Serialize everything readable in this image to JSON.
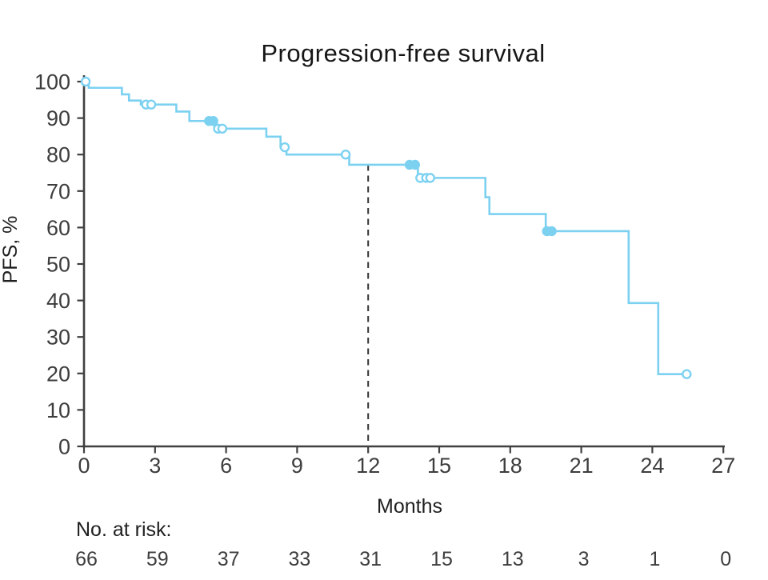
{
  "colors": {
    "curve": "#7cd1f1",
    "axis": "#404040",
    "reference_line": "#333333",
    "title_text": "#161616",
    "label_text": "#1f1f1f",
    "tick_text": "#3d3d3d",
    "background": "#ffffff"
  },
  "chart_data": {
    "type": "line",
    "subtype": "kaplan-meier-step-curve",
    "title": "Progression-free survival",
    "xlabel": "Months",
    "ylabel": "PFS, %",
    "xlim": [
      0,
      27
    ],
    "ylim": [
      0,
      100
    ],
    "x_ticks": [
      0,
      3,
      6,
      9,
      12,
      15,
      18,
      21,
      24,
      27
    ],
    "y_ticks": [
      0,
      10,
      20,
      30,
      40,
      50,
      60,
      70,
      80,
      90,
      100
    ],
    "grid": false,
    "legend": "none",
    "series": [
      {
        "name": "PFS",
        "color": "#7cd1f1",
        "steps": [
          {
            "t": 0.0,
            "s": 100.0
          },
          {
            "t": 0.2,
            "s": 98.3
          },
          {
            "t": 1.6,
            "s": 96.5
          },
          {
            "t": 1.9,
            "s": 94.8
          },
          {
            "t": 2.4,
            "s": 93.7
          },
          {
            "t": 3.9,
            "s": 91.8
          },
          {
            "t": 4.45,
            "s": 89.2
          },
          {
            "t": 5.52,
            "s": 87.1
          },
          {
            "t": 7.7,
            "s": 84.9
          },
          {
            "t": 8.3,
            "s": 82.0
          },
          {
            "t": 8.55,
            "s": 80.0
          },
          {
            "t": 11.2,
            "s": 77.2
          },
          {
            "t": 14.1,
            "s": 73.6
          },
          {
            "t": 16.95,
            "s": 68.3
          },
          {
            "t": 17.12,
            "s": 63.7
          },
          {
            "t": 19.5,
            "s": 59.0
          },
          {
            "t": 23.0,
            "s": 39.3
          },
          {
            "t": 24.25,
            "s": 19.8
          }
        ],
        "end_time": 25.45,
        "censor_marks": [
          {
            "t": 0.07,
            "s": 100.0,
            "style": "open"
          },
          {
            "t": 2.62,
            "s": 93.7,
            "style": "open"
          },
          {
            "t": 2.84,
            "s": 93.7,
            "style": "open"
          },
          {
            "t": 5.28,
            "s": 89.2,
            "style": "solid"
          },
          {
            "t": 5.46,
            "s": 89.2,
            "style": "solid"
          },
          {
            "t": 5.66,
            "s": 87.1,
            "style": "open"
          },
          {
            "t": 5.84,
            "s": 87.1,
            "style": "open"
          },
          {
            "t": 8.48,
            "s": 82.0,
            "style": "open"
          },
          {
            "t": 11.05,
            "s": 80.0,
            "style": "open"
          },
          {
            "t": 13.75,
            "s": 77.2,
            "style": "solid"
          },
          {
            "t": 13.98,
            "s": 77.2,
            "style": "solid"
          },
          {
            "t": 14.2,
            "s": 73.6,
            "style": "open"
          },
          {
            "t": 14.45,
            "s": 73.6,
            "style": "open"
          },
          {
            "t": 14.62,
            "s": 73.6,
            "style": "open"
          },
          {
            "t": 19.55,
            "s": 59.0,
            "style": "solid"
          },
          {
            "t": 19.75,
            "s": 59.0,
            "style": "solid"
          },
          {
            "t": 25.45,
            "s": 19.8,
            "style": "open"
          }
        ]
      }
    ],
    "reference_line": {
      "type": "vertical-dashed",
      "x": 12,
      "y_top_value": 77.2,
      "y_bottom_value": 0
    },
    "at_risk": {
      "label": "No. at risk:",
      "times": [
        0,
        3,
        6,
        9,
        12,
        15,
        18,
        21,
        24,
        27
      ],
      "counts": [
        66,
        59,
        37,
        33,
        31,
        15,
        13,
        3,
        1,
        0
      ]
    }
  }
}
